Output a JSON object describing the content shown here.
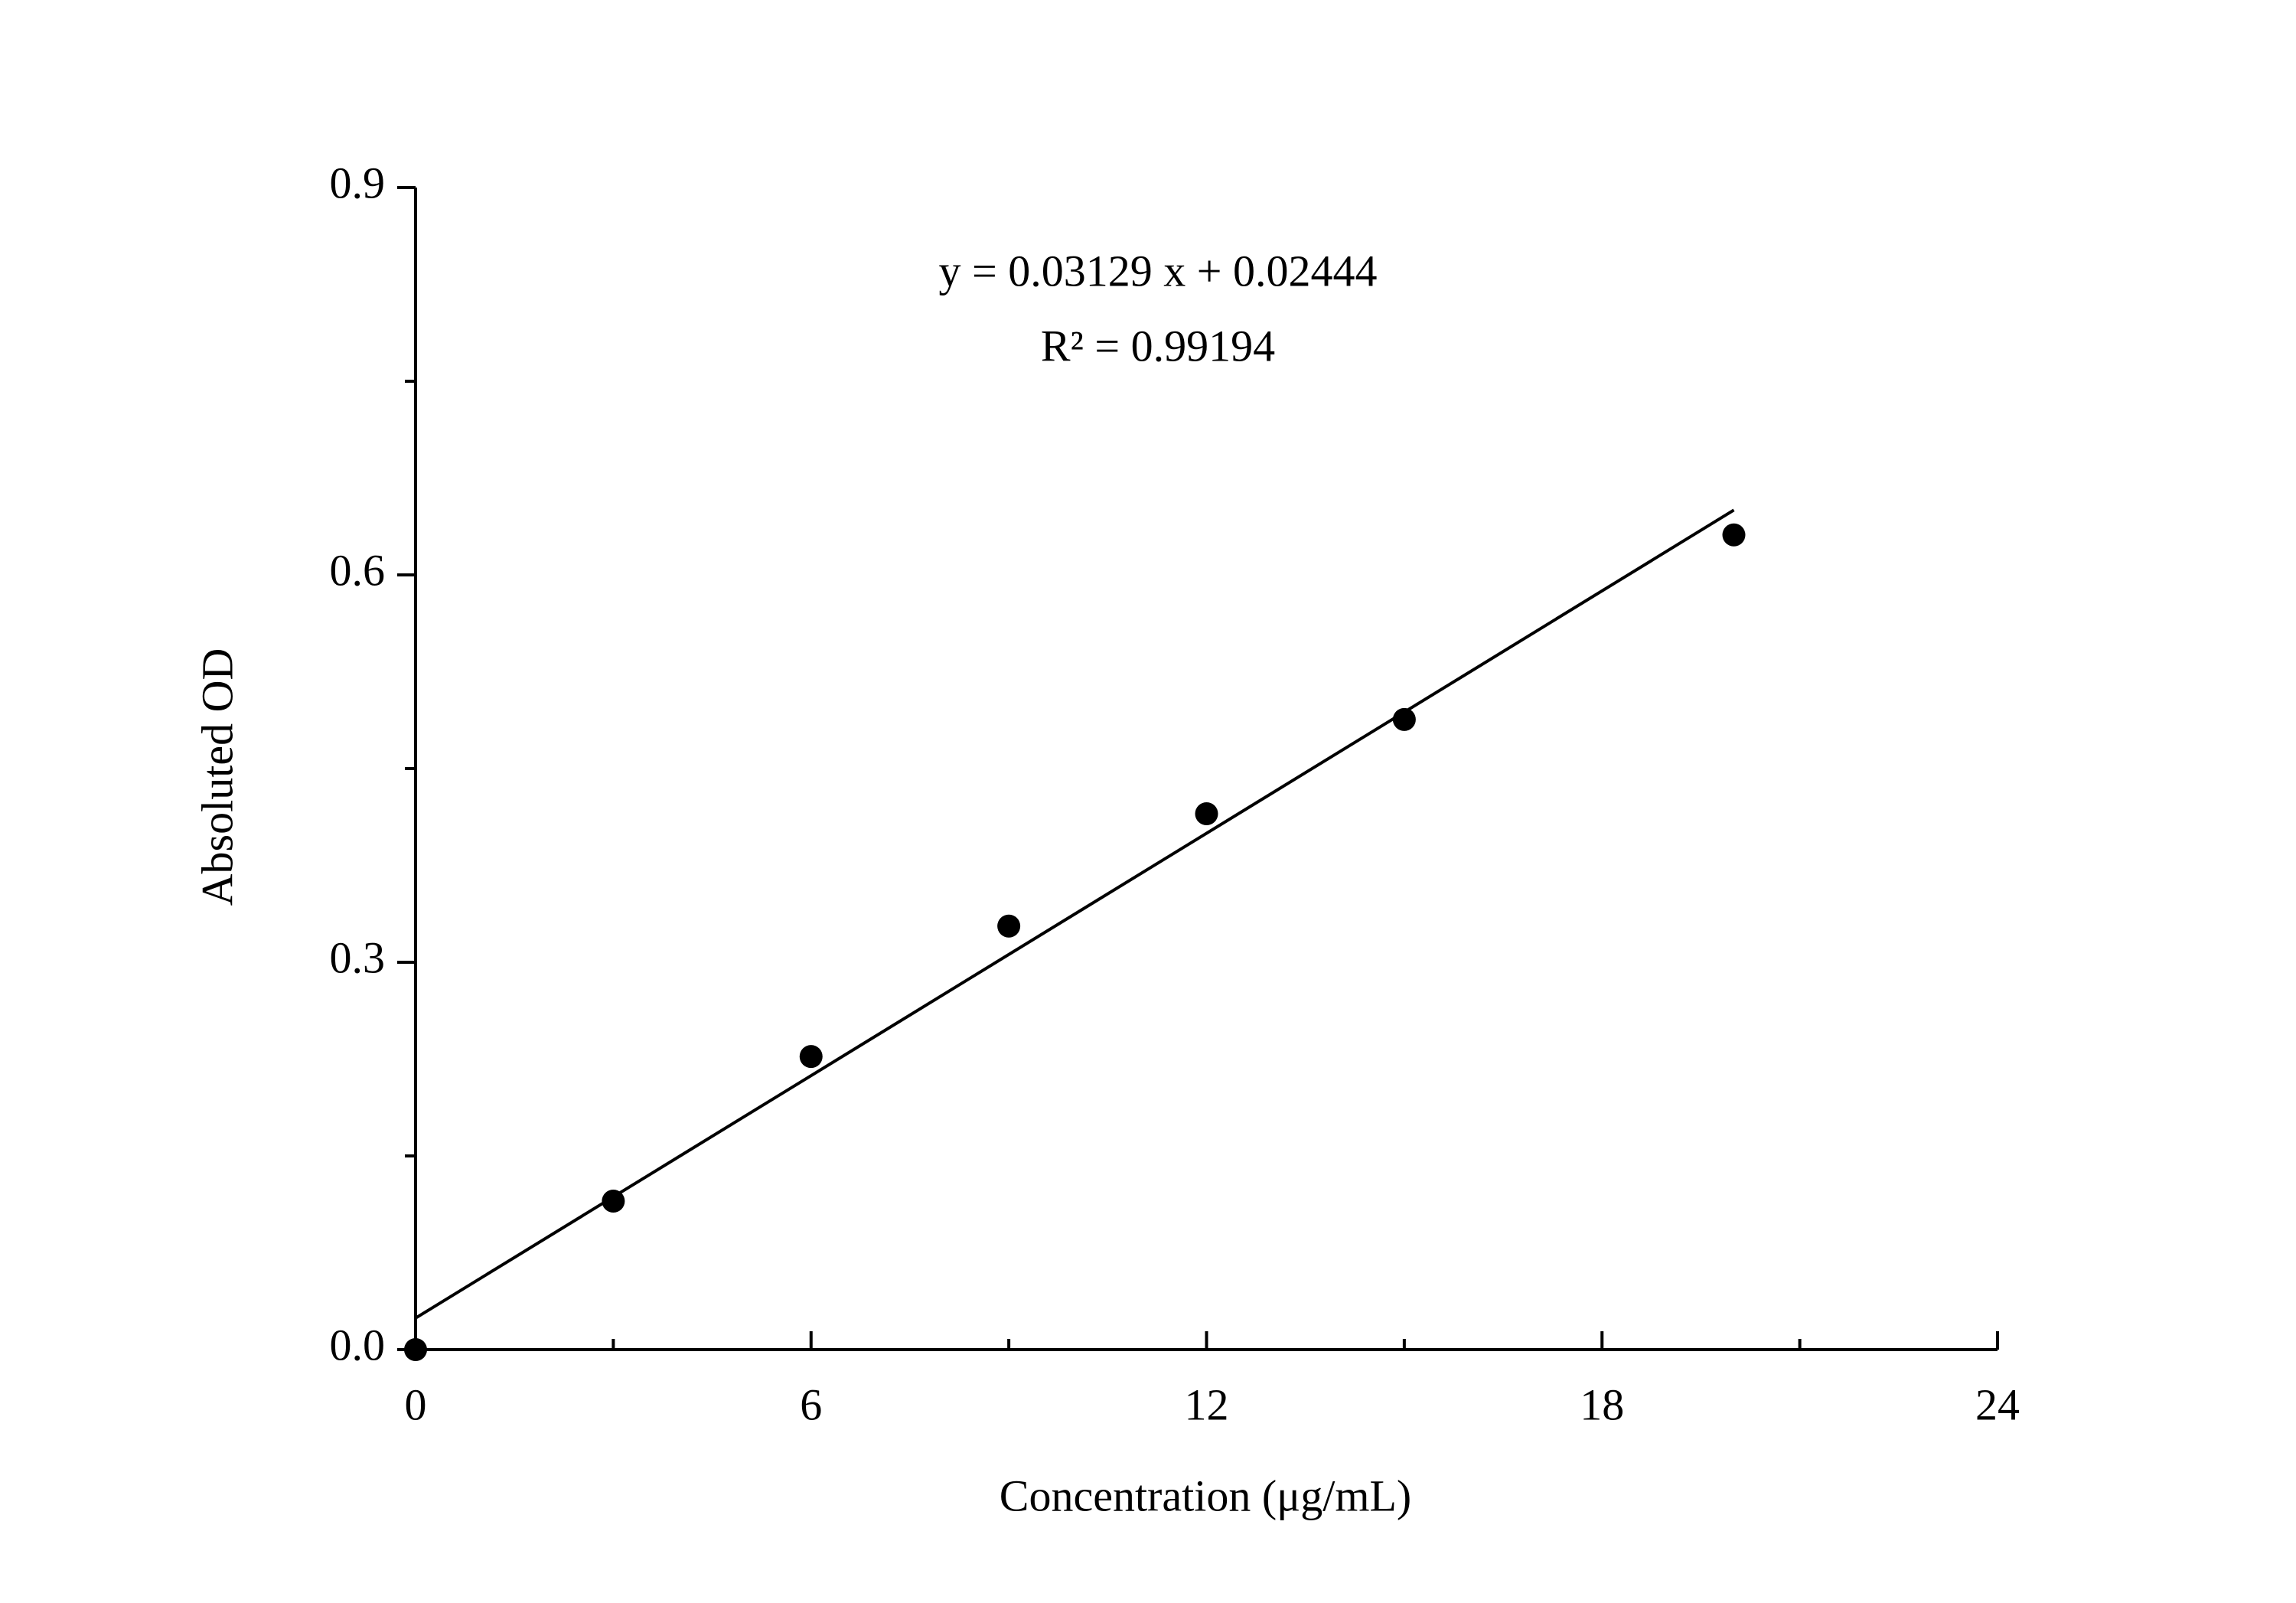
{
  "chart_data": {
    "type": "scatter",
    "x_label": "Concentration (μg/mL)",
    "y_label": "Absoluted OD",
    "annotations": [
      "y = 0.03129 x + 0.02444",
      "R² = 0.99194"
    ],
    "x": [
      0,
      3,
      6,
      9,
      12,
      15,
      20
    ],
    "values": [
      0,
      0.115,
      0.227,
      0.328,
      0.415,
      0.488,
      0.631
    ],
    "color": "#000000",
    "fit": {
      "x": [
        0,
        20
      ],
      "values": [
        0.02444,
        0.6502
      ]
    },
    "xlim": [
      0,
      24
    ],
    "xticks": [
      0,
      6,
      12,
      18,
      24
    ],
    "xminor": [
      3,
      9,
      15,
      21
    ],
    "ylim": [
      0,
      0.9
    ],
    "yticks": [
      {
        "value": 0,
        "label": "0.0"
      },
      0.3,
      0.6,
      0.9
    ],
    "yminor": [
      0.15,
      0.45,
      0.75
    ],
    "grid": false
  }
}
